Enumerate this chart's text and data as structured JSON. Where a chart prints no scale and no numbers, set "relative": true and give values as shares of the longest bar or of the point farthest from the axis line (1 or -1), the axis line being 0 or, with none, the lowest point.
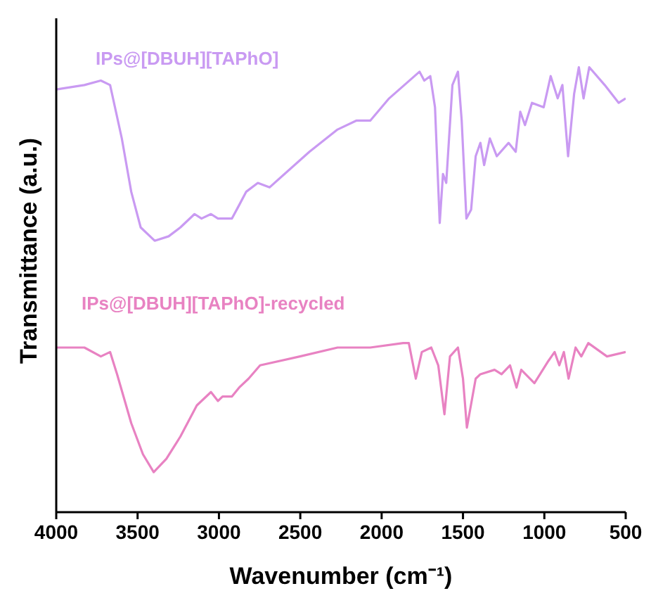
{
  "chart_data": {
    "type": "line",
    "relative": true,
    "xlabel": "Wavenumber (cm⁻¹)",
    "ylabel": "Transmittance (a.u.)",
    "xlim": [
      4000,
      500
    ],
    "xticks": [
      4000,
      3500,
      3000,
      2500,
      2000,
      1500,
      1000,
      500
    ],
    "series": [
      {
        "name": "IPs@[DBUH][TAPhO]",
        "color": "#c99af2",
        "x": [
          4000,
          3827,
          3726,
          3669,
          3597,
          3539,
          3481,
          3395,
          3309,
          3237,
          3150,
          3107,
          3049,
          3006,
          2920,
          2876,
          2833,
          2761,
          2689,
          2444,
          2271,
          2156,
          2070,
          1954,
          1767,
          1738,
          1701,
          1672,
          1643,
          1623,
          1603,
          1565,
          1531,
          1508,
          1479,
          1450,
          1422,
          1393,
          1370,
          1335,
          1292,
          1220,
          1176,
          1148,
          1119,
          1076,
          1004,
          961,
          918,
          889,
          854,
          817,
          788,
          759,
          724,
          629,
          543,
          500
        ],
        "values": [
          0.95,
          0.96,
          0.97,
          0.96,
          0.84,
          0.72,
          0.64,
          0.61,
          0.62,
          0.64,
          0.67,
          0.66,
          0.67,
          0.66,
          0.66,
          0.69,
          0.72,
          0.74,
          0.73,
          0.81,
          0.86,
          0.88,
          0.88,
          0.93,
          0.99,
          0.97,
          0.98,
          0.91,
          0.65,
          0.76,
          0.74,
          0.96,
          0.99,
          0.88,
          0.66,
          0.68,
          0.8,
          0.83,
          0.78,
          0.84,
          0.8,
          0.83,
          0.81,
          0.9,
          0.87,
          0.92,
          0.91,
          0.98,
          0.93,
          0.96,
          0.8,
          0.94,
          1.0,
          0.93,
          1.0,
          0.96,
          0.92,
          0.93
        ]
      },
      {
        "name": "IPs@[DBUH][TAPhO]-recycled",
        "color": "#e882c2",
        "x": [
          4000,
          3827,
          3726,
          3669,
          3626,
          3539,
          3467,
          3401,
          3323,
          3237,
          3136,
          3049,
          3006,
          2978,
          2920,
          2876,
          2818,
          2747,
          2502,
          2271,
          2070,
          1868,
          1833,
          1790,
          1753,
          1695,
          1652,
          1614,
          1580,
          1531,
          1500,
          1476,
          1422,
          1393,
          1306,
          1263,
          1211,
          1171,
          1142,
          1061,
          975,
          937,
          908,
          880,
          851,
          808,
          773,
          730,
          615,
          500
        ],
        "values": [
          0.37,
          0.37,
          0.35,
          0.36,
          0.31,
          0.2,
          0.13,
          0.09,
          0.12,
          0.17,
          0.24,
          0.27,
          0.25,
          0.26,
          0.26,
          0.28,
          0.3,
          0.33,
          0.35,
          0.37,
          0.37,
          0.38,
          0.38,
          0.3,
          0.36,
          0.37,
          0.33,
          0.22,
          0.35,
          0.37,
          0.3,
          0.19,
          0.3,
          0.31,
          0.32,
          0.31,
          0.33,
          0.28,
          0.32,
          0.29,
          0.34,
          0.36,
          0.33,
          0.36,
          0.3,
          0.37,
          0.35,
          0.38,
          0.35,
          0.36
        ]
      }
    ]
  }
}
